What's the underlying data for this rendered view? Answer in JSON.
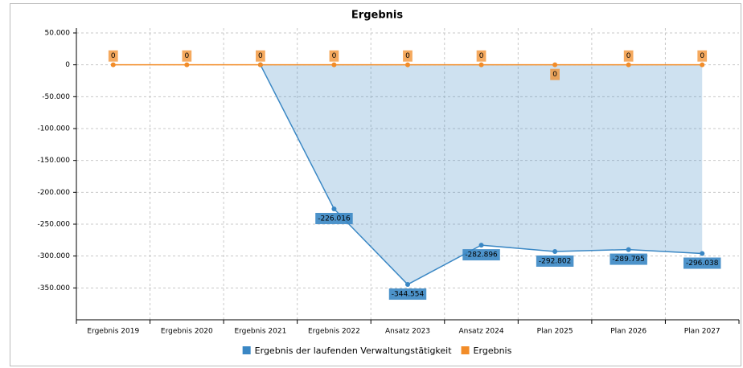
{
  "chart_data": {
    "type": "line",
    "title": "Ergebnis",
    "categories": [
      "Ergebnis 2019",
      "Ergebnis 2020",
      "Ergebnis 2021",
      "Ergebnis 2022",
      "Ansatz 2023",
      "Ansatz 2024",
      "Plan 2025",
      "Plan 2026",
      "Plan 2027"
    ],
    "series": [
      {
        "name": "Ergebnis der laufenden Verwaltungstätigkeit",
        "color": "#3a87c4",
        "area": true,
        "values": [
          null,
          null,
          0,
          -226016,
          -344554,
          -282896,
          -292802,
          -289795,
          -296038
        ],
        "value_labels": [
          null,
          null,
          null,
          "-226.016",
          "-344.554",
          "-282.896",
          "-292.802",
          "-289.795",
          "-296.038"
        ]
      },
      {
        "name": "Ergebnis",
        "color": "#f28c28",
        "values": [
          0,
          0,
          0,
          0,
          0,
          0,
          0,
          0,
          0
        ],
        "value_labels": [
          "0",
          "0",
          "0",
          "0",
          "0",
          "0",
          "0",
          "0",
          "0"
        ]
      }
    ],
    "ylim": [
      -400000,
      50000
    ],
    "yticks": [
      {
        "value": 50000,
        "label": "50.000"
      },
      0,
      {
        "value": -50000,
        "label": "-50.000"
      },
      {
        "value": -100000,
        "label": "-100.000"
      },
      {
        "value": -150000,
        "label": "-150.000"
      },
      {
        "value": -200000,
        "label": "-200.000"
      },
      {
        "value": -250000,
        "label": "-250.000"
      },
      {
        "value": -300000,
        "label": "-300.000"
      },
      {
        "value": -350000,
        "label": "-350.000"
      }
    ],
    "grid": true
  }
}
